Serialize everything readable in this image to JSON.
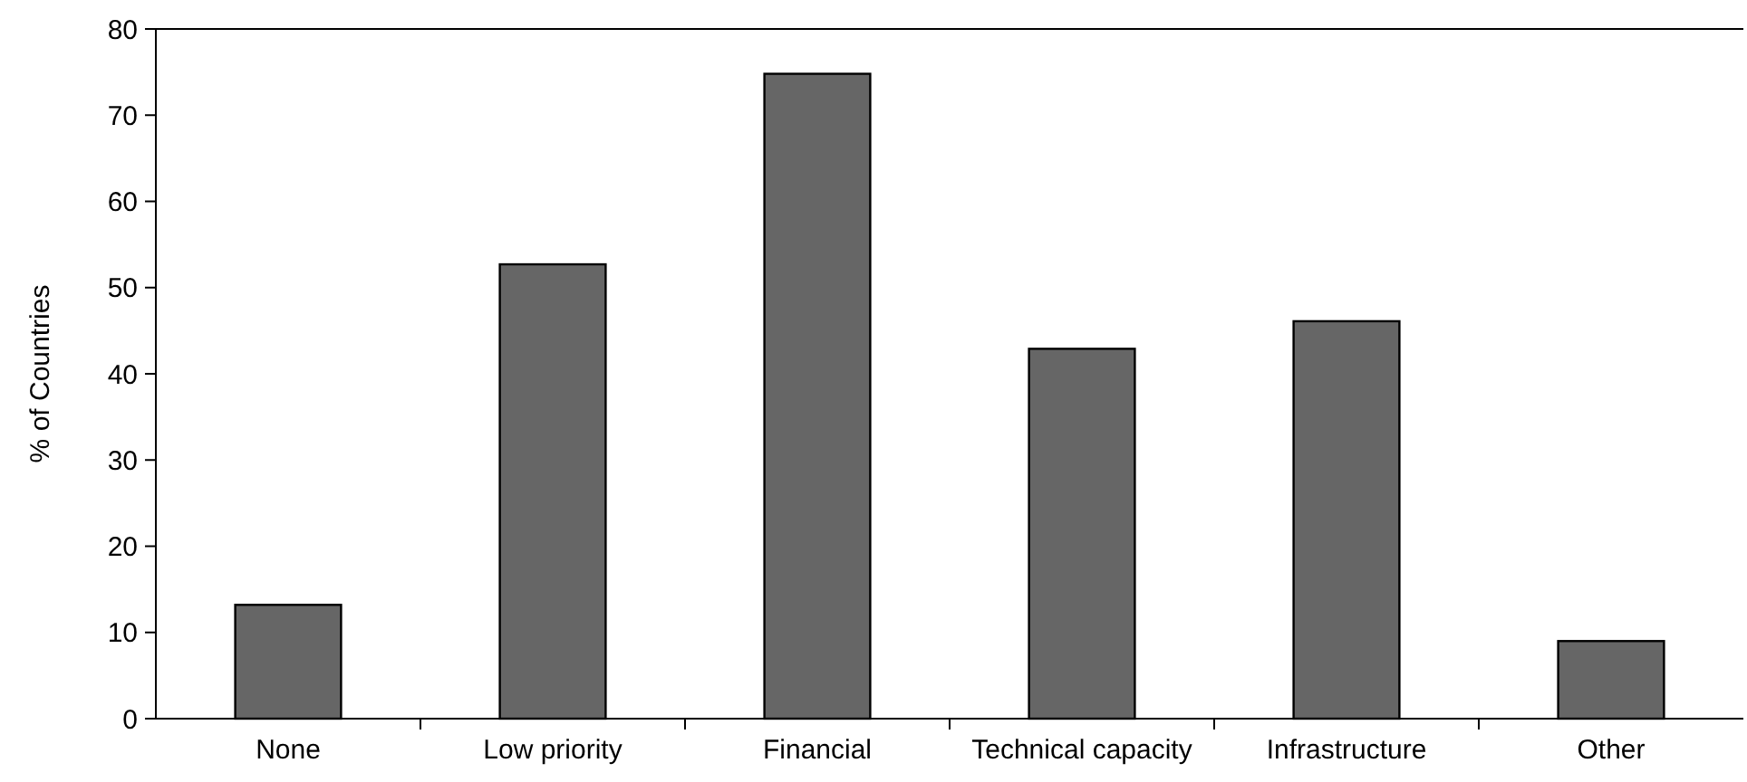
{
  "chart_data": {
    "type": "bar",
    "ylabel": "% of Countries",
    "categories": [
      "None",
      "Low priority",
      "Financial",
      "Technical capacity",
      "Infrastructure",
      "Other"
    ],
    "values": [
      13.2,
      52.7,
      74.8,
      42.9,
      46.1,
      9
    ],
    "color": "#666666",
    "ylim": [
      0,
      80
    ],
    "yticks": [
      0,
      10,
      20,
      30,
      40,
      50,
      60,
      70,
      80
    ],
    "grid": false
  }
}
